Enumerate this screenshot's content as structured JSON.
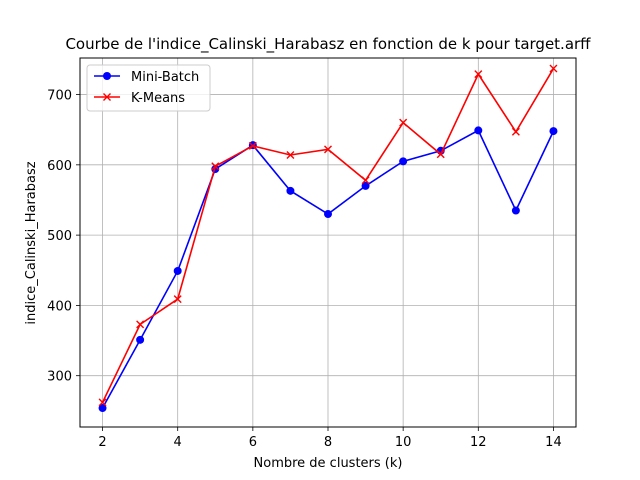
{
  "chart_data": {
    "type": "line",
    "title": "Courbe de l'indice_Calinski_Harabasz en fonction de k pour target.arff",
    "xlabel": "Nombre de clusters (k)",
    "ylabel": "indice_Calinski_Harabasz",
    "x": [
      2,
      3,
      4,
      5,
      6,
      7,
      8,
      9,
      10,
      11,
      12,
      13,
      14
    ],
    "xlim": [
      1.4,
      14.6
    ],
    "ylim": [
      227,
      752
    ],
    "xticks": [
      2,
      4,
      6,
      8,
      10,
      12,
      14
    ],
    "yticks": [
      300,
      400,
      500,
      600,
      700
    ],
    "grid": true,
    "legend_position": "upper-left",
    "series": [
      {
        "name": "Mini-Batch",
        "color": "#0000ff",
        "marker": "circle",
        "values": [
          254,
          351,
          449,
          594,
          628,
          563,
          530,
          570,
          605,
          620,
          649,
          535,
          648
        ]
      },
      {
        "name": "K-Means",
        "color": "#ff0000",
        "marker": "x",
        "values": [
          262,
          373,
          409,
          598,
          627,
          614,
          622,
          578,
          660,
          615,
          729,
          647,
          737
        ]
      }
    ]
  }
}
